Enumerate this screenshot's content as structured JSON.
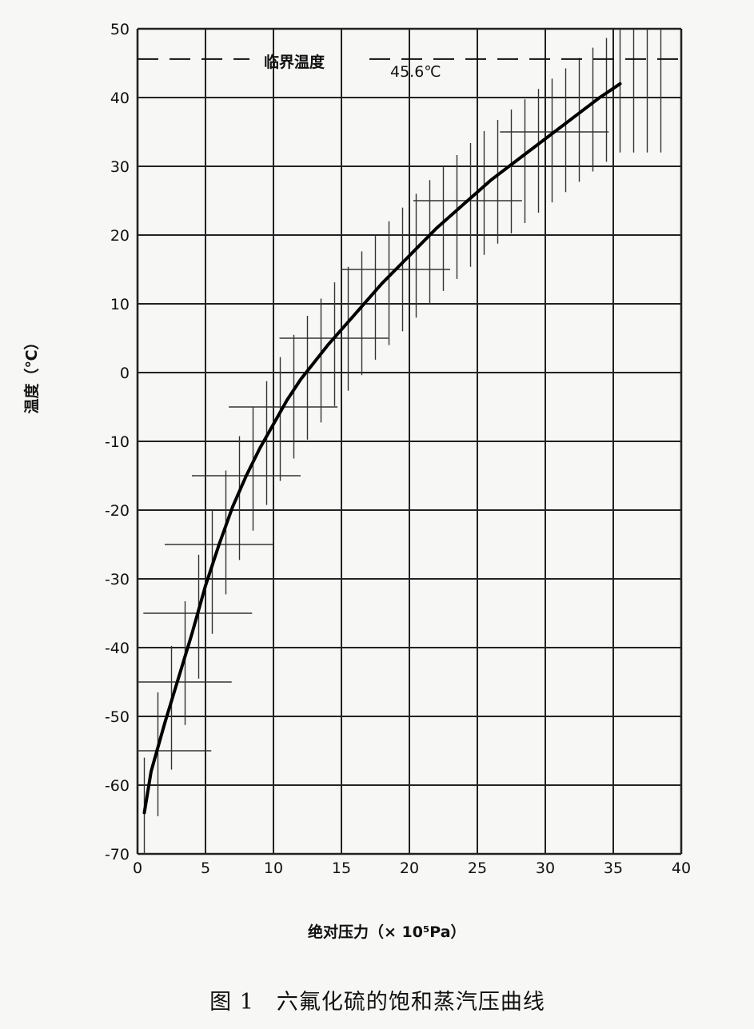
{
  "chart_data": {
    "type": "line",
    "xlabel": "绝对压力（× 10⁵Pa）",
    "ylabel": "温度（℃）",
    "xlim": [
      0,
      40
    ],
    "ylim": [
      -70,
      50
    ],
    "x_ticks": [
      "0",
      "5",
      "10",
      "15",
      "20",
      "25",
      "30",
      "35",
      "40"
    ],
    "y_ticks": [
      "50",
      "40",
      "30",
      "20",
      "10",
      "0",
      "-10",
      "-20",
      "-30",
      "-40",
      "-50",
      "-60",
      "-70"
    ],
    "grid": true,
    "series": [
      {
        "x": [
          0.5,
          1.0,
          2.0,
          3.0,
          4.0,
          5.0,
          6.0,
          7.0,
          8.0,
          9.0,
          10.0,
          11.0,
          12.0,
          13.0,
          14.0,
          16.0,
          18.0,
          20.0,
          22.0,
          24.0,
          26.0,
          28.0,
          30.0,
          32.0,
          34.0,
          35.5
        ],
        "y": [
          -64,
          -58,
          -51,
          -44.5,
          -38,
          -31,
          -25,
          -19.5,
          -15,
          -11,
          -7.5,
          -4,
          -1,
          1.5,
          4,
          8.5,
          13,
          17,
          21,
          24.5,
          28,
          31,
          34,
          37,
          40,
          42
        ]
      }
    ],
    "annotations": {
      "critical_label": "临界温度",
      "critical_value": "45.6℃",
      "critical_temp": 45.6
    }
  },
  "caption": "图 1　六氟化硫的饱和蒸汽压曲线"
}
